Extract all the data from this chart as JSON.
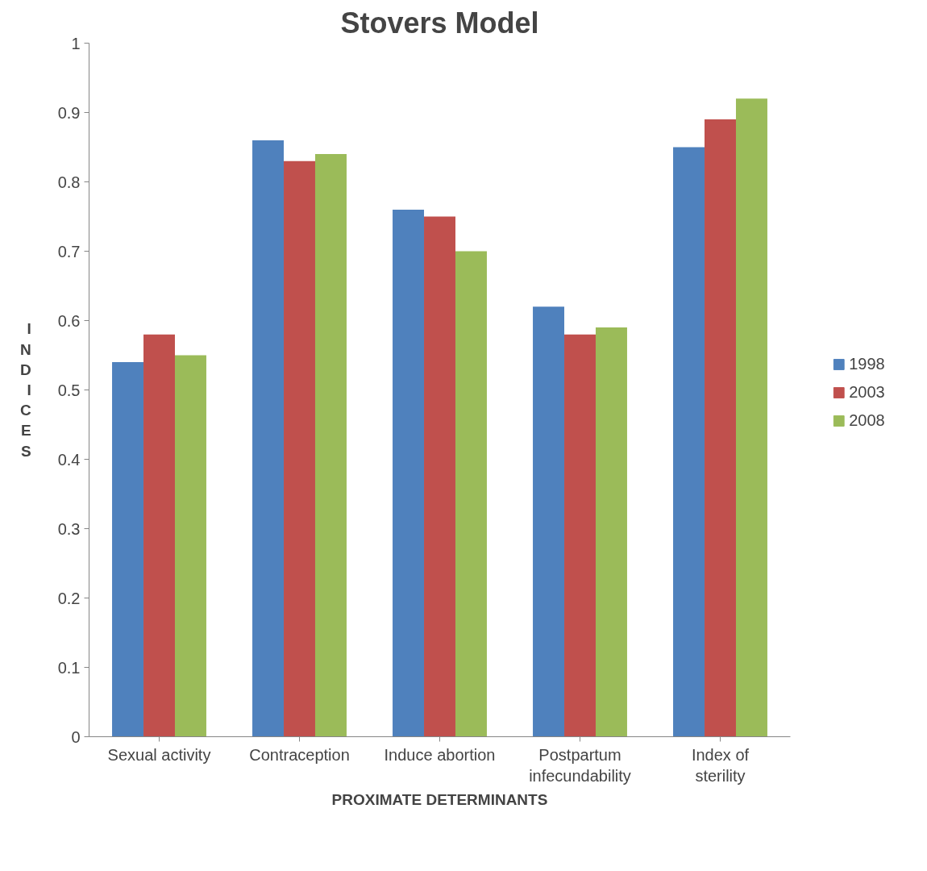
{
  "chart_data": {
    "type": "bar",
    "title": "Stovers Model",
    "xlabel": "PROXIMATE DETERMINANTS",
    "ylabel": "INDICES",
    "categories": [
      "Sexual activity",
      "Contraception",
      "Induce abortion",
      "Postpartum infecundability",
      "Index of sterility"
    ],
    "series": [
      {
        "name": "1998",
        "color": "#4f81bd",
        "values": [
          0.54,
          0.86,
          0.76,
          0.62,
          0.85
        ]
      },
      {
        "name": "2003",
        "color": "#c0504d",
        "values": [
          0.58,
          0.83,
          0.75,
          0.58,
          0.89
        ]
      },
      {
        "name": "2008",
        "color": "#9bbb59",
        "values": [
          0.55,
          0.84,
          0.7,
          0.59,
          0.92
        ]
      }
    ],
    "ylim": [
      0,
      1
    ],
    "yticks": [
      0,
      0.1,
      0.2,
      0.3,
      0.4,
      0.5,
      0.6,
      0.7,
      0.8,
      0.9,
      1
    ],
    "grid": false,
    "legend": "right"
  }
}
